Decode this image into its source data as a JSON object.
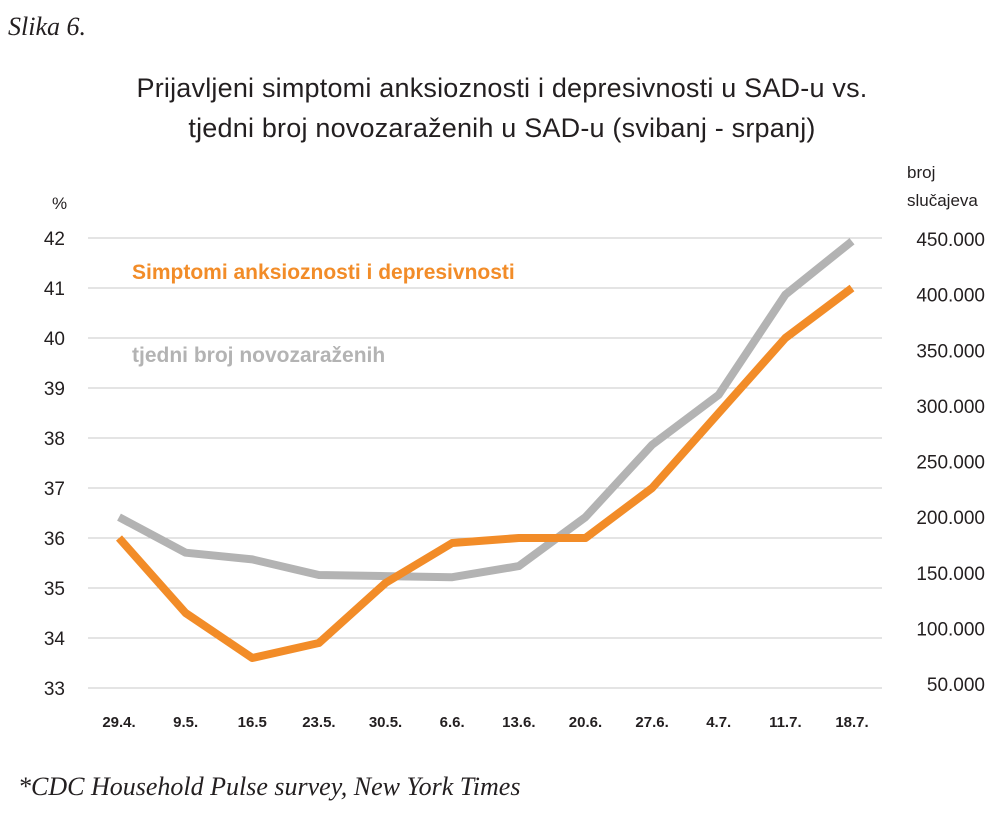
{
  "figure_label": "Slika 6.",
  "footnote": "*CDC Household Pulse survey, New York Times",
  "chart_data": {
    "type": "line",
    "title_line1": "Prijavljeni simptomi anksioznosti i depresivnosti u SAD-u vs.",
    "title_line2": "tjedni broj novozaraženih u SAD-u (svibanj - srpanj)",
    "categories": [
      "29.4.",
      "9.5.",
      "16.5",
      "23.5.",
      "30.5.",
      "6.6.",
      "13.6.",
      "20.6.",
      "27.6.",
      "4.7.",
      "11.7.",
      "18.7."
    ],
    "y_left": {
      "label": "%",
      "range": [
        33,
        42
      ],
      "ticks": [
        "42",
        "41",
        "40",
        "39",
        "38",
        "37",
        "36",
        "35",
        "34",
        "33"
      ]
    },
    "y_right": {
      "label_line1": "broj",
      "label_line2": "slučajeva",
      "range": [
        50000,
        450000
      ],
      "ticks": [
        "450.000",
        "400.000",
        "350.000",
        "300.000",
        "250.000",
        "200.000",
        "150.000",
        "100.000",
        "50.000"
      ]
    },
    "grid": "horizontal",
    "series": [
      {
        "name": "Simptomi anksioznosti i depresivnosti",
        "axis": "left",
        "color": "#f28c28",
        "values": [
          36.0,
          34.5,
          33.6,
          33.9,
          35.1,
          35.9,
          36.0,
          36.0,
          37.0,
          38.5,
          40.0,
          41.0
        ]
      },
      {
        "name": "tjedni broj novozaraženih",
        "axis": "right",
        "color": "#b3b3b3",
        "values": [
          200000,
          168000,
          162000,
          148000,
          147000,
          146000,
          156000,
          200000,
          265000,
          310000,
          400000,
          448000
        ]
      }
    ]
  }
}
